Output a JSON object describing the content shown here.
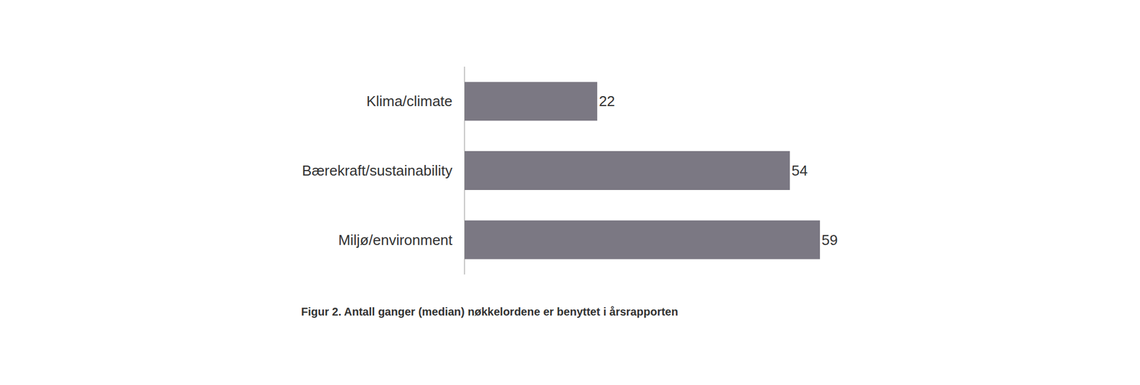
{
  "chart_data": {
    "type": "bar",
    "orientation": "horizontal",
    "title": "Figur 2. Antall ganger (median) nøkkelordene er benyttet i årsrapporten",
    "categories": [
      "Klima/climate",
      "Bærekraft/sustainability",
      "Miljø/environment"
    ],
    "values": [
      22,
      54,
      59
    ],
    "color": "#7b7883",
    "xlim": [
      0,
      59
    ],
    "xticks": [],
    "tick_labels": "y",
    "grid": false,
    "data_labels": true
  }
}
